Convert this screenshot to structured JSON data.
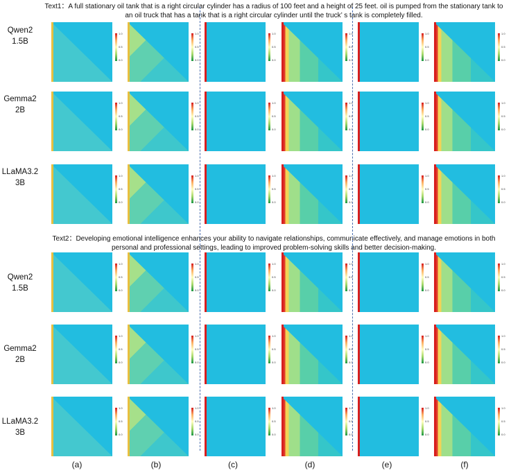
{
  "text1": "Text1：A full stationary oil tank that is a right circular cylinder has a radius of 100 feet and a height of 25 feet. oil is pumped from the stationary tank to an oil truck that has a tank that is a right circular cylinder until the truck’ s tank is completely filled.",
  "text2": "Text2：Developing emotional intelligence enhances your ability to navigate relationships, communicate effectively, and manage emotions in both personal and professional settings, leading to improved problem-solving skills and better decision-making.",
  "models": [
    {
      "line1": "Qwen2",
      "line2": "1.5B"
    },
    {
      "line1": "Gemma2",
      "line2": "2B"
    },
    {
      "line1": "LLaMA3.2",
      "line2": "3B"
    },
    {
      "line1": "Qwen2",
      "line2": "1.5B"
    },
    {
      "line1": "Gemma2",
      "line2": "2B"
    },
    {
      "line1": "LLaMA3.2",
      "line2": "3B"
    }
  ],
  "sublabels": [
    "(a)",
    "(b)",
    "(c)",
    "(d)",
    "(e)",
    "(f)"
  ],
  "colorbar": {
    "top": "1.0",
    "mid": "0.5",
    "bottom": "0.0"
  },
  "colors": {
    "cyan": "#22bde0",
    "red": "#d81e1e",
    "separator": "#4a6fb0"
  }
}
